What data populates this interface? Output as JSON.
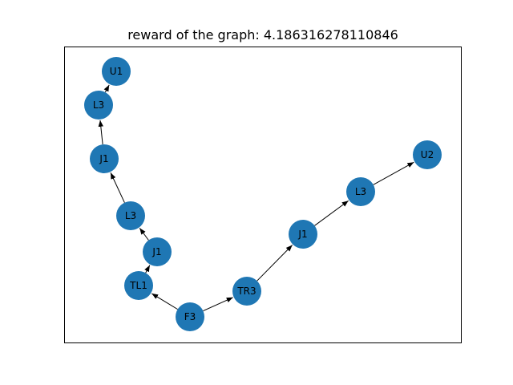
{
  "title": "reward of the graph: 4.186316278110846",
  "colors": {
    "node": "#1f77b4",
    "edge": "#000000",
    "frame": "#000000",
    "background": "#ffffff"
  },
  "graph": {
    "nodes": [
      {
        "id": "f3",
        "label": "F3"
      },
      {
        "id": "tl1",
        "label": "TL1"
      },
      {
        "id": "j1a",
        "label": "J1"
      },
      {
        "id": "l3a",
        "label": "L3"
      },
      {
        "id": "j1b",
        "label": "J1"
      },
      {
        "id": "l3b",
        "label": "L3"
      },
      {
        "id": "u1",
        "label": "U1"
      },
      {
        "id": "tr3",
        "label": "TR3"
      },
      {
        "id": "j1c",
        "label": "J1"
      },
      {
        "id": "l3c",
        "label": "L3"
      },
      {
        "id": "u2",
        "label": "U2"
      }
    ],
    "edges": [
      {
        "from": "f3",
        "to": "tl1"
      },
      {
        "from": "tl1",
        "to": "j1a"
      },
      {
        "from": "j1a",
        "to": "l3a"
      },
      {
        "from": "l3a",
        "to": "j1b"
      },
      {
        "from": "j1b",
        "to": "l3b"
      },
      {
        "from": "l3b",
        "to": "u1"
      },
      {
        "from": "f3",
        "to": "tr3"
      },
      {
        "from": "tr3",
        "to": "j1c"
      },
      {
        "from": "j1c",
        "to": "l3c"
      },
      {
        "from": "l3c",
        "to": "u2"
      }
    ]
  }
}
